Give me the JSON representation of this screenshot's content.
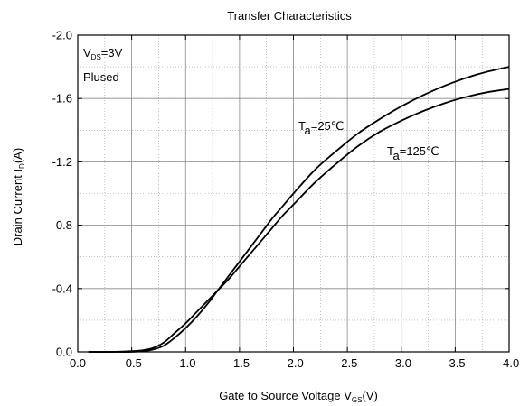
{
  "chart_data": {
    "type": "line",
    "title": "Transfer Characteristics",
    "xlabel": {
      "main": "Gate to Source Voltage V",
      "sub": "GS",
      "tail": "(V)"
    },
    "ylabel": {
      "main": "Drain Current I",
      "sub": "D",
      "tail": "(A)"
    },
    "xlim": [
      0.0,
      -4.0
    ],
    "ylim": [
      0.0,
      -2.0
    ],
    "x_ticks": [
      0.0,
      -0.5,
      -1.0,
      -1.5,
      -2.0,
      -2.5,
      -3.0,
      -3.5,
      -4.0
    ],
    "x_tick_labels": [
      "0.0",
      "-0.5",
      "-1.0",
      "-1.5",
      "-2.0",
      "-2.5",
      "-3.0",
      "-3.5",
      "-4.0"
    ],
    "y_ticks": [
      0.0,
      -0.4,
      -0.8,
      -1.2,
      -1.6,
      -2.0
    ],
    "y_tick_labels": [
      "0.0",
      "-0.4",
      "-0.8",
      "-1.2",
      "-1.6",
      "-2.0"
    ],
    "x_minor_step": -0.25,
    "y_minor_step": -0.2,
    "grid": true,
    "annotations": {
      "condition": {
        "main": "V",
        "sub": "DS",
        "tail": "=3V"
      },
      "mode": "Plused"
    },
    "series": [
      {
        "name": {
          "main": "T",
          "sub": "a",
          "tail": "=25℃"
        },
        "x": [
          -0.1,
          -0.3,
          -0.5,
          -0.6,
          -0.7,
          -0.8,
          -0.9,
          -1.0,
          -1.1,
          -1.2,
          -1.3,
          -1.4,
          -1.5,
          -1.6,
          -1.7,
          -1.8,
          -1.9,
          -2.0,
          -2.2,
          -2.4,
          -2.6,
          -2.8,
          -3.0,
          -3.2,
          -3.4,
          -3.6,
          -3.8,
          -4.0
        ],
        "y": [
          0.0,
          0.0,
          0.0,
          -0.005,
          -0.015,
          -0.04,
          -0.09,
          -0.15,
          -0.22,
          -0.3,
          -0.39,
          -0.48,
          -0.57,
          -0.66,
          -0.75,
          -0.84,
          -0.92,
          -1.0,
          -1.15,
          -1.27,
          -1.38,
          -1.47,
          -1.55,
          -1.62,
          -1.68,
          -1.73,
          -1.77,
          -1.8
        ]
      },
      {
        "name": {
          "main": "T",
          "sub": "a",
          "tail": "=125℃"
        },
        "x": [
          -0.1,
          -0.3,
          -0.5,
          -0.6,
          -0.7,
          -0.8,
          -0.9,
          -1.0,
          -1.1,
          -1.2,
          -1.3,
          -1.4,
          -1.5,
          -1.6,
          -1.7,
          -1.8,
          -1.9,
          -2.0,
          -2.2,
          -2.4,
          -2.6,
          -2.8,
          -3.0,
          -3.2,
          -3.4,
          -3.6,
          -3.8,
          -4.0
        ],
        "y": [
          0.0,
          0.0,
          -0.005,
          -0.01,
          -0.025,
          -0.06,
          -0.12,
          -0.18,
          -0.25,
          -0.32,
          -0.39,
          -0.46,
          -0.54,
          -0.62,
          -0.7,
          -0.78,
          -0.86,
          -0.93,
          -1.07,
          -1.19,
          -1.3,
          -1.39,
          -1.46,
          -1.52,
          -1.57,
          -1.61,
          -1.64,
          -1.66
        ]
      }
    ]
  }
}
